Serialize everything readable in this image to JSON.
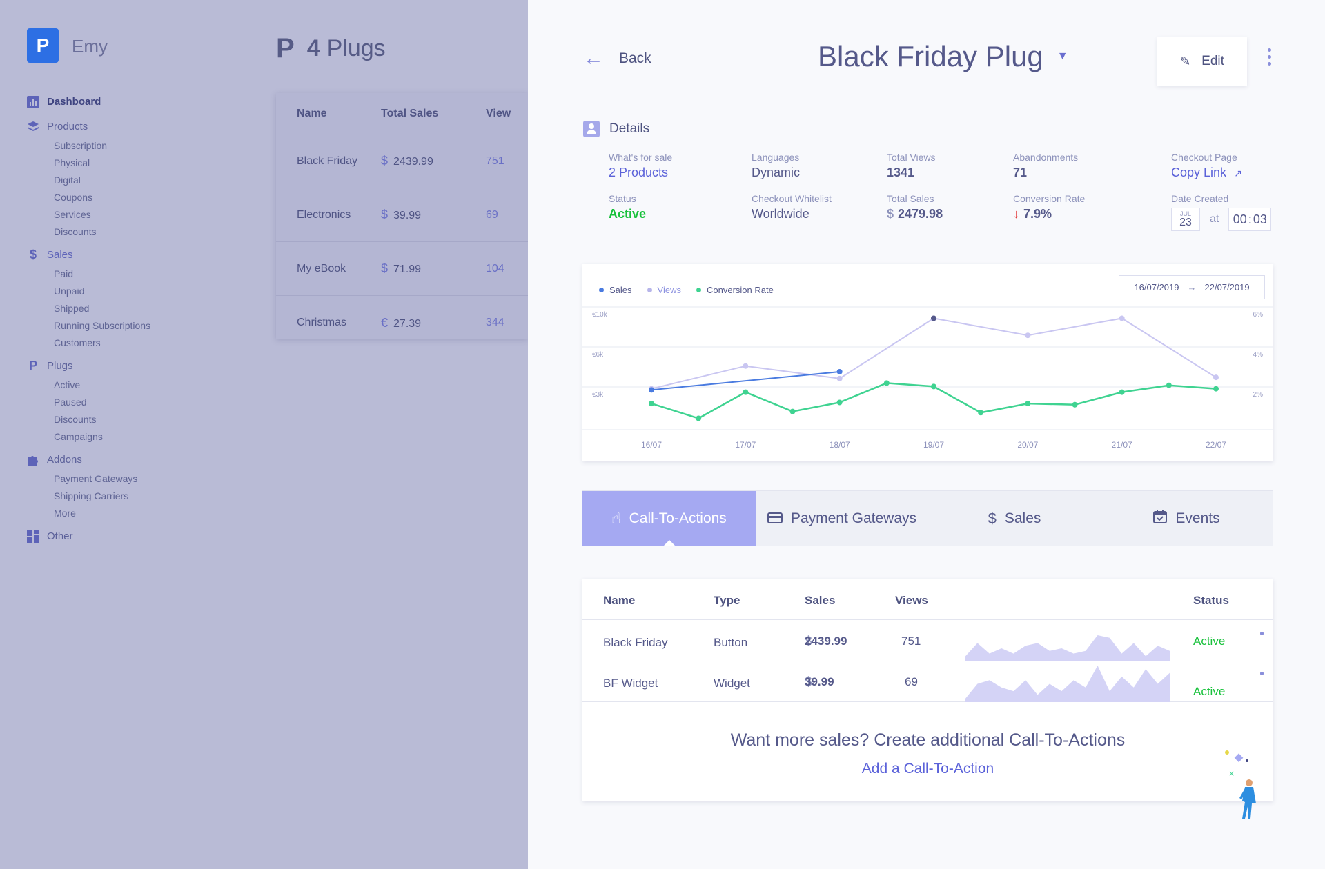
{
  "app": {
    "logo_letter": "P",
    "brand": "Emy",
    "colors": {
      "accent": "#a5a9f2",
      "link": "#5b62d9",
      "success": "#18c13b",
      "danger": "#e23b3b",
      "logo": "#2d6fe4"
    }
  },
  "sidebar": {
    "sections": [
      {
        "label": "Dashboard",
        "icon": "bar-chart-icon",
        "items": []
      },
      {
        "label": "Products",
        "icon": "layers-icon",
        "items": [
          "Subscription",
          "Physical",
          "Digital",
          "Coupons",
          "Services",
          "Discounts"
        ]
      },
      {
        "label": "Sales",
        "icon": "dollar-icon",
        "items": [
          "Paid",
          "Unpaid",
          "Shipped",
          "Running Subscriptions",
          "Customers"
        ]
      },
      {
        "label": "Plugs",
        "icon": "plug-icon",
        "items": [
          "Active",
          "Paused",
          "Discounts",
          "Campaigns"
        ]
      },
      {
        "label": "Addons",
        "icon": "puzzle-icon",
        "items": [
          "Payment Gateways",
          "Shipping Carriers",
          "More"
        ]
      },
      {
        "label": "Other",
        "icon": "grid-icon",
        "items": []
      }
    ]
  },
  "background": {
    "title_icon": "P",
    "title_count": "4",
    "title_text": "Plugs",
    "columns": [
      "Name",
      "Total Sales",
      "View"
    ],
    "rows": [
      {
        "name": "Black Friday",
        "currency": "$",
        "sales": "2439.99",
        "views": "751"
      },
      {
        "name": "Electronics",
        "currency": "$",
        "sales": "39.99",
        "views": "69"
      },
      {
        "name": "My eBook",
        "currency": "$",
        "sales": "71.99",
        "views": "104"
      },
      {
        "name": "Christmas",
        "currency": "€",
        "sales": "27.39",
        "views": "344"
      }
    ]
  },
  "drawer": {
    "back_label": "Back",
    "title": "Black Friday Plug",
    "edit_label": "Edit",
    "details_heading": "Details",
    "fields": {
      "whats_for_sale": {
        "label": "What's for sale",
        "value": "2 Products"
      },
      "languages": {
        "label": "Languages",
        "value": "Dynamic"
      },
      "total_views": {
        "label": "Total Views",
        "value": "1341"
      },
      "abandonments": {
        "label": "Abandonments",
        "value": "71"
      },
      "checkout_page": {
        "label": "Checkout Page",
        "value": "Copy Link"
      },
      "status": {
        "label": "Status",
        "value": "Active"
      },
      "checkout_whitelist": {
        "label": "Checkout Whitelist",
        "value": "Worldwide"
      },
      "total_sales": {
        "label": "Total Sales",
        "currency": "$",
        "value": "2479.98"
      },
      "conversion_rate": {
        "label": "Conversion Rate",
        "value": "7.9%"
      },
      "date_created": {
        "label": "Date Created",
        "month": "JUL",
        "day": "23",
        "at": "at",
        "hour": "00",
        "minute": "03"
      }
    }
  },
  "chart_data": {
    "type": "line",
    "legend": [
      "Sales",
      "Views",
      "Conversion Rate"
    ],
    "legend_colors": [
      "#4a7be0",
      "#b7b5ea",
      "#3fd391"
    ],
    "date_range": {
      "from": "16/07/2019",
      "to": "22/07/2019"
    },
    "x_ticks": [
      "16/07",
      "17/07",
      "18/07",
      "19/07",
      "20/07",
      "21/07",
      "22/07"
    ],
    "left_ticks": [
      "€10k",
      "€6k",
      "€3k"
    ],
    "right_ticks": [
      "6%",
      "4%",
      "2%"
    ],
    "series": [
      {
        "name": "Views",
        "color": "#c9c6f1",
        "points": [
          [
            16.0,
            3.6
          ],
          [
            17.0,
            5.6
          ],
          [
            18.0,
            4.5
          ],
          [
            19.0,
            9.8
          ],
          [
            20.0,
            8.3
          ],
          [
            21.0,
            9.8
          ],
          [
            22.0,
            4.6
          ]
        ]
      },
      {
        "name": "Conversion Rate",
        "color": "#3fd391",
        "points": [
          [
            16.0,
            2.3
          ],
          [
            16.5,
            1.0
          ],
          [
            17.0,
            3.3
          ],
          [
            17.5,
            1.6
          ],
          [
            18.0,
            2.4
          ],
          [
            18.5,
            4.1
          ],
          [
            19.0,
            3.8
          ],
          [
            19.5,
            1.5
          ],
          [
            20.0,
            2.3
          ],
          [
            20.5,
            2.2
          ],
          [
            21.0,
            3.3
          ],
          [
            21.5,
            3.9
          ],
          [
            22.0,
            3.6
          ]
        ]
      },
      {
        "name": "Sales",
        "color": "#4a7be0",
        "points": [
          [
            16.0,
            3.5
          ],
          [
            18.0,
            5.1
          ]
        ]
      }
    ],
    "highlight_point": [
      19.0,
      9.8
    ]
  },
  "tabs": [
    {
      "label": "Call-To-Actions",
      "icon": "pointer-icon",
      "active": true
    },
    {
      "label": "Payment Gateways",
      "icon": "credit-card-icon",
      "active": false
    },
    {
      "label": "Sales",
      "icon": "dollar-icon",
      "active": false
    },
    {
      "label": "Events",
      "icon": "calendar-icon",
      "active": false
    }
  ],
  "cta_table": {
    "columns": {
      "name": "Name",
      "type": "Type",
      "sales": "Sales",
      "views": "Views",
      "status": "Status"
    },
    "rows": [
      {
        "name": "Black Friday",
        "type": "Button",
        "currency": "$",
        "sales": "2439.99",
        "views": "751",
        "status": "Active",
        "spark": [
          0.2,
          0.7,
          0.3,
          0.5,
          0.3,
          0.6,
          0.7,
          0.4,
          0.5,
          0.3,
          0.4,
          1.0,
          0.9,
          0.3,
          0.7,
          0.2,
          0.6,
          0.4
        ]
      },
      {
        "name": "BF Widget",
        "type": "Widget",
        "currency": "$",
        "sales": "39.99",
        "views": "69",
        "status": "Active",
        "spark": [
          0.1,
          0.5,
          0.6,
          0.4,
          0.3,
          0.6,
          0.2,
          0.5,
          0.3,
          0.6,
          0.4,
          1.0,
          0.3,
          0.7,
          0.4,
          0.9,
          0.5,
          0.8
        ]
      }
    ],
    "promo_text": "Want more sales? Create additional Call-To-Actions",
    "promo_link": "Add a Call-To-Action"
  }
}
